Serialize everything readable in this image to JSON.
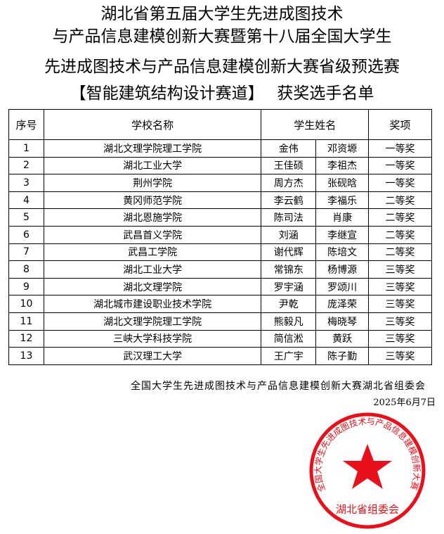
{
  "title": {
    "line1": "湖北省第五届大学生先进成图技术",
    "line2": "与产品信息建模创新大赛暨第十八届全国大学生",
    "line3": "先进成图技术与产品信息建模创新大赛省级预选赛",
    "line4": "【智能建筑结构设计赛道】　 获奖选手名单"
  },
  "table": {
    "headers": [
      "序号",
      "学校名称",
      "学生姓名",
      "奖项"
    ],
    "rows": [
      [
        "1",
        "湖北文理学院理工学院",
        "金伟",
        "邓资塬",
        "一等奖"
      ],
      [
        "2",
        "湖北工业大学",
        "王佳硕",
        "李祖杰",
        "一等奖"
      ],
      [
        "3",
        "荆州学院",
        "周方杰",
        "张砚晗",
        "一等奖"
      ],
      [
        "4",
        "黄冈师范学院",
        "李云鹤",
        "李福乐",
        "二等奖"
      ],
      [
        "5",
        "湖北恩施学院",
        "陈司法",
        "肖康",
        "二等奖"
      ],
      [
        "6",
        "武昌首义学院",
        "刘涵",
        "李继宣",
        "二等奖"
      ],
      [
        "7",
        "武昌工学院",
        "谢代辉",
        "陈培文",
        "二等奖"
      ],
      [
        "8",
        "湖北工业大学",
        "常锦东",
        "杨博源",
        "三等奖"
      ],
      [
        "9",
        "湖北文理学院",
        "罗宇涵",
        "罗颂川",
        "三等奖"
      ],
      [
        "10",
        "湖北城市建设职业技术学院",
        "尹乾",
        "庞泽荣",
        "三等奖"
      ],
      [
        "11",
        "湖北文理学院理工学院",
        "熊毅凡",
        "梅晓琴",
        "三等奖"
      ],
      [
        "12",
        "三峡大学科技学院",
        "简信淞",
        "黄跃",
        "三等奖"
      ],
      [
        "13",
        "武汉理工大学",
        "王广宇",
        "陈子勤",
        "三等奖"
      ]
    ]
  },
  "footer": {
    "organizer": "全国大学生先进成图技术与产品信息建模创新大赛湖北省组委会",
    "date": "2025年6月7日"
  },
  "seal": {
    "arc_text": "全国大学生先进成图技术与产品信息建模创新大赛",
    "bottom_text": "湖北省组委会",
    "color": "#e8101a"
  }
}
